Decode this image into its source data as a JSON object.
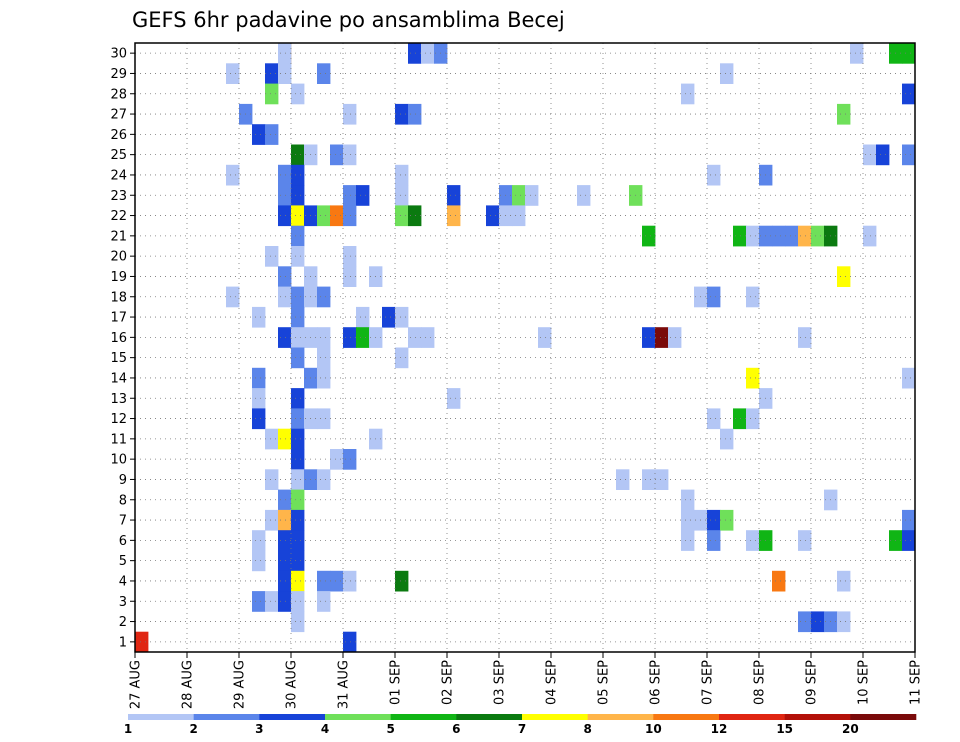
{
  "chart_data": {
    "type": "heatmap",
    "title": "GEFS 6hr padavine po ansamblima Becej",
    "xlabel": "",
    "ylabel": "",
    "x_tick_labels": [
      "27 AUG",
      "28 AUG",
      "29 AUG",
      "30 AUG",
      "31 AUG",
      "01 SEP",
      "02 SEP",
      "03 SEP",
      "04 SEP",
      "05 SEP",
      "06 SEP",
      "07 SEP",
      "08 SEP",
      "09 SEP",
      "10 SEP",
      "11 SEP"
    ],
    "x_range_days": [
      0,
      15
    ],
    "y_members": [
      1,
      30
    ],
    "y_tick_labels": [
      "1",
      "2",
      "3",
      "4",
      "5",
      "6",
      "7",
      "8",
      "9",
      "10",
      "11",
      "12",
      "13",
      "14",
      "15",
      "16",
      "17",
      "18",
      "19",
      "20",
      "21",
      "22",
      "23",
      "24",
      "25",
      "26",
      "27",
      "28",
      "29",
      "30"
    ],
    "grid": true,
    "legend": {
      "placement": "bottom",
      "colors": [
        "#b3c6f5",
        "#5b85ea",
        "#1743d8",
        "#6fe05a",
        "#10b515",
        "#0b7a10",
        "#ffff00",
        "#ffb54a",
        "#f87812",
        "#e02612",
        "#b31008",
        "#7a0a0a"
      ],
      "labels": [
        "1",
        "2",
        "3",
        "4",
        "5",
        "6",
        "7",
        "8",
        "10",
        "12",
        "15",
        "20"
      ]
    },
    "value_classes": [
      1,
      2,
      3,
      4,
      5,
      6,
      7,
      8,
      9,
      10,
      11,
      12
    ],
    "cells": [
      [
        2.75,
        30,
        9
      ],
      [
        2.75,
        30,
        1
      ],
      [
        5.25,
        30,
        1
      ],
      [
        5.25,
        30,
        3
      ],
      [
        5.5,
        30,
        1
      ],
      [
        5.75,
        30,
        2
      ],
      [
        13.75,
        30,
        1
      ],
      [
        14.5,
        30,
        5
      ],
      [
        14.75,
        30,
        5
      ],
      [
        15,
        30,
        7
      ],
      [
        1.75,
        29,
        1
      ],
      [
        2.5,
        29,
        3
      ],
      [
        2.75,
        29,
        1
      ],
      [
        3.5,
        29,
        2
      ],
      [
        11.25,
        29,
        1
      ],
      [
        2.5,
        28,
        4
      ],
      [
        3,
        28,
        1
      ],
      [
        10.5,
        28,
        1
      ],
      [
        14.75,
        28,
        3
      ],
      [
        15,
        28,
        7
      ],
      [
        2,
        27,
        2
      ],
      [
        4,
        27,
        1
      ],
      [
        5,
        27,
        3
      ],
      [
        5.25,
        27,
        2
      ],
      [
        13.5,
        27,
        4
      ],
      [
        2.25,
        26,
        3
      ],
      [
        2.5,
        26,
        2
      ],
      [
        15,
        26,
        5
      ],
      [
        3,
        25,
        6
      ],
      [
        3.25,
        25,
        1
      ],
      [
        3.75,
        25,
        2
      ],
      [
        4,
        25,
        1
      ],
      [
        14,
        25,
        1
      ],
      [
        14.25,
        25,
        3
      ],
      [
        14.75,
        25,
        2
      ],
      [
        15,
        25,
        3
      ],
      [
        1.75,
        24,
        1
      ],
      [
        2.75,
        24,
        2
      ],
      [
        3,
        24,
        3
      ],
      [
        5,
        24,
        1
      ],
      [
        11,
        24,
        1
      ],
      [
        12,
        24,
        2
      ],
      [
        2.75,
        23,
        2
      ],
      [
        3,
        23,
        3
      ],
      [
        4,
        23,
        2
      ],
      [
        4.25,
        23,
        3
      ],
      [
        5,
        23,
        1
      ],
      [
        6,
        23,
        3
      ],
      [
        7,
        23,
        2
      ],
      [
        7.25,
        23,
        4
      ],
      [
        7.5,
        23,
        1
      ],
      [
        8.5,
        23,
        1
      ],
      [
        9.5,
        23,
        4
      ],
      [
        2.75,
        22,
        3
      ],
      [
        3,
        22,
        7
      ],
      [
        3.25,
        22,
        3
      ],
      [
        3.5,
        22,
        4
      ],
      [
        3.75,
        22,
        9
      ],
      [
        4,
        22,
        2
      ],
      [
        5,
        22,
        4
      ],
      [
        5.25,
        22,
        6
      ],
      [
        6,
        22,
        8
      ],
      [
        6.75,
        22,
        3
      ],
      [
        7,
        22,
        1
      ],
      [
        7.25,
        22,
        1
      ],
      [
        3,
        21,
        2
      ],
      [
        9.75,
        21,
        5
      ],
      [
        11.5,
        21,
        5
      ],
      [
        11.75,
        21,
        1
      ],
      [
        12,
        21,
        2
      ],
      [
        12.25,
        21,
        2
      ],
      [
        12.5,
        21,
        2
      ],
      [
        12.75,
        21,
        8
      ],
      [
        13,
        21,
        4
      ],
      [
        13.25,
        21,
        6
      ],
      [
        14,
        21,
        1
      ],
      [
        2.5,
        20,
        1
      ],
      [
        3,
        20,
        1
      ],
      [
        4,
        20,
        1
      ],
      [
        2.75,
        19,
        2
      ],
      [
        3.25,
        19,
        1
      ],
      [
        4,
        19,
        1
      ],
      [
        4.5,
        19,
        1
      ],
      [
        13.5,
        19,
        7
      ],
      [
        1.75,
        18,
        1
      ],
      [
        2.75,
        18,
        1
      ],
      [
        3,
        18,
        2
      ],
      [
        3.25,
        18,
        1
      ],
      [
        3.5,
        18,
        2
      ],
      [
        10.75,
        18,
        1
      ],
      [
        11,
        18,
        2
      ],
      [
        11.75,
        18,
        1
      ],
      [
        2.25,
        17,
        1
      ],
      [
        3,
        17,
        2
      ],
      [
        4.75,
        17,
        3
      ],
      [
        5,
        17,
        1
      ],
      [
        4.25,
        17,
        1
      ],
      [
        2.75,
        16,
        3
      ],
      [
        3,
        16,
        1
      ],
      [
        3.25,
        16,
        1
      ],
      [
        3.5,
        16,
        1
      ],
      [
        4,
        16,
        3
      ],
      [
        4.25,
        16,
        5
      ],
      [
        4.5,
        16,
        1
      ],
      [
        5.25,
        16,
        1
      ],
      [
        5.5,
        16,
        1
      ],
      [
        7.75,
        16,
        1
      ],
      [
        9.75,
        16,
        3
      ],
      [
        10,
        16,
        12
      ],
      [
        10.25,
        16,
        1
      ],
      [
        12.75,
        16,
        1
      ],
      [
        3,
        15,
        2
      ],
      [
        3.5,
        15,
        1
      ],
      [
        5,
        15,
        1
      ],
      [
        2.25,
        14,
        2
      ],
      [
        3.25,
        14,
        2
      ],
      [
        3.5,
        14,
        1
      ],
      [
        11.75,
        14,
        7
      ],
      [
        14.75,
        14,
        1
      ],
      [
        2.25,
        13,
        1
      ],
      [
        3,
        13,
        3
      ],
      [
        6,
        13,
        1
      ],
      [
        12,
        13,
        1
      ],
      [
        2.25,
        12,
        3
      ],
      [
        3,
        12,
        2
      ],
      [
        3.25,
        12,
        1
      ],
      [
        3.5,
        12,
        1
      ],
      [
        11,
        12,
        1
      ],
      [
        11.5,
        12,
        5
      ],
      [
        11.75,
        12,
        1
      ],
      [
        2.5,
        11,
        1
      ],
      [
        2.75,
        11,
        7
      ],
      [
        3,
        11,
        3
      ],
      [
        4.5,
        11,
        1
      ],
      [
        11.25,
        11,
        1
      ],
      [
        3,
        10,
        3
      ],
      [
        3.75,
        10,
        1
      ],
      [
        4,
        10,
        2
      ],
      [
        2.5,
        9,
        1
      ],
      [
        3,
        9,
        1
      ],
      [
        3.25,
        9,
        2
      ],
      [
        3.5,
        9,
        1
      ],
      [
        9.25,
        9,
        1
      ],
      [
        9.75,
        9,
        1
      ],
      [
        10,
        9,
        1
      ],
      [
        15,
        9,
        1
      ],
      [
        2.75,
        8,
        2
      ],
      [
        3,
        8,
        4
      ],
      [
        10.5,
        8,
        1
      ],
      [
        13.25,
        8,
        1
      ],
      [
        2.5,
        7,
        1
      ],
      [
        2.75,
        7,
        8
      ],
      [
        3,
        7,
        3
      ],
      [
        10.5,
        7,
        1
      ],
      [
        10.75,
        7,
        1
      ],
      [
        11,
        7,
        3
      ],
      [
        11.25,
        7,
        4
      ],
      [
        14.75,
        7,
        2
      ],
      [
        15,
        7,
        3
      ],
      [
        2.25,
        6,
        1
      ],
      [
        2.75,
        6,
        3
      ],
      [
        3,
        6,
        3
      ],
      [
        10.5,
        6,
        1
      ],
      [
        11,
        6,
        2
      ],
      [
        11.75,
        6,
        1
      ],
      [
        12,
        6,
        5
      ],
      [
        12.75,
        6,
        1
      ],
      [
        14.5,
        6,
        5
      ],
      [
        14.75,
        6,
        3
      ],
      [
        2.25,
        5,
        1
      ],
      [
        2.75,
        5,
        3
      ],
      [
        3,
        5,
        3
      ],
      [
        2.75,
        4,
        3
      ],
      [
        3,
        4,
        7
      ],
      [
        3.5,
        4,
        2
      ],
      [
        3.75,
        4,
        2
      ],
      [
        4,
        4,
        1
      ],
      [
        5,
        4,
        6
      ],
      [
        12.25,
        4,
        9
      ],
      [
        13.5,
        4,
        1
      ],
      [
        2.25,
        3,
        2
      ],
      [
        2.5,
        3,
        1
      ],
      [
        2.75,
        3,
        3
      ],
      [
        3,
        3,
        1
      ],
      [
        3.5,
        3,
        1
      ],
      [
        3,
        2,
        1
      ],
      [
        12.75,
        2,
        2
      ],
      [
        13,
        2,
        3
      ],
      [
        13.25,
        2,
        2
      ],
      [
        13.5,
        2,
        1
      ],
      [
        4,
        1,
        3
      ],
      [
        0,
        1,
        10
      ]
    ]
  }
}
